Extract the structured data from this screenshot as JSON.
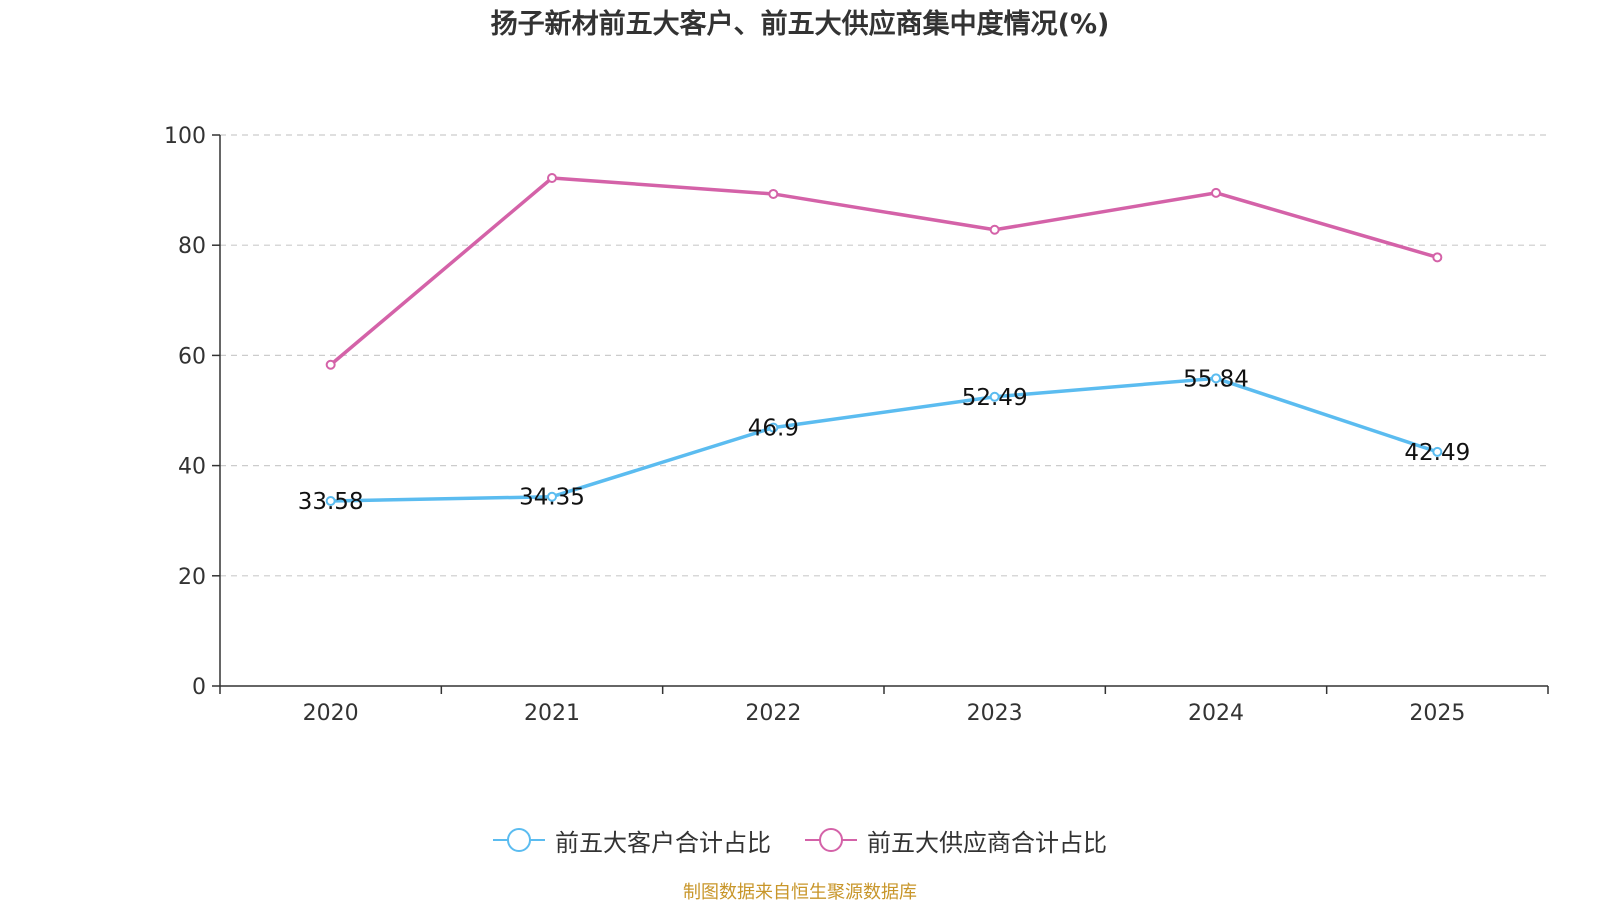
{
  "colors": {
    "customers": "#5bbcf0",
    "suppliers": "#d462a8",
    "axis": "#333333",
    "grid": "#cccccc",
    "source": "#c8962a"
  },
  "chart_data": {
    "type": "line",
    "title": "扬子新材前五大客户、前五大供应商集中度情况(%)",
    "categories": [
      "2020",
      "2021",
      "2022",
      "2023",
      "2024",
      "2025"
    ],
    "series": [
      {
        "name": "前五大客户合计占比",
        "values": [
          33.58,
          34.35,
          46.9,
          52.49,
          55.84,
          42.49
        ],
        "labels": [
          "33.58",
          "34.35",
          "46.9",
          "52.49",
          "55.84",
          "42.49"
        ],
        "show_labels": true
      },
      {
        "name": "前五大供应商合计占比",
        "values": [
          58.3,
          92.2,
          89.3,
          82.8,
          89.5,
          77.8
        ],
        "show_labels": false
      }
    ],
    "ylim": [
      0,
      100
    ],
    "yticks": [
      "0",
      "20",
      "40",
      "60",
      "80",
      "100"
    ],
    "xlabel": "",
    "ylabel": "",
    "grid": true,
    "legend": "bottom-center"
  },
  "source": "制图数据来自恒生聚源数据库"
}
